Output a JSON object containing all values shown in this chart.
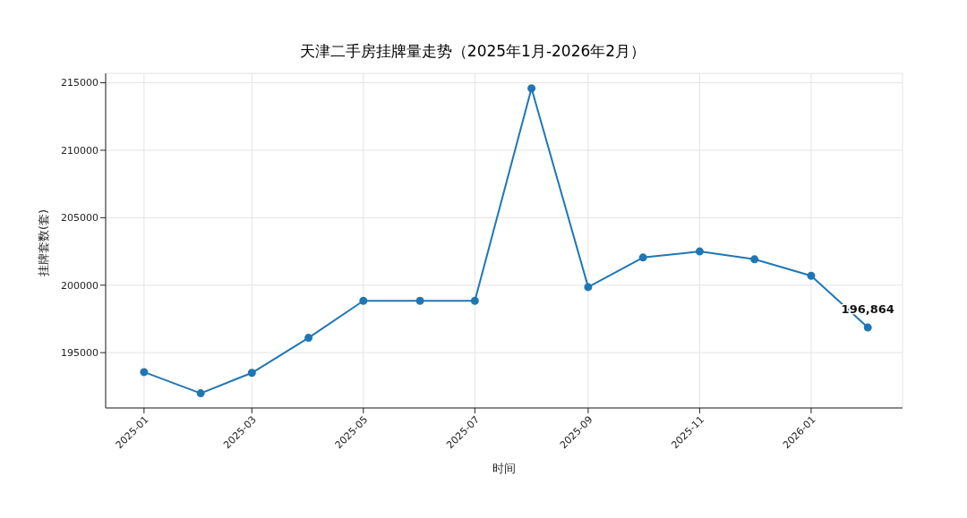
{
  "chart_data": {
    "type": "line",
    "title": "天津二手房挂牌量走势（2025年1月-2026年2月）",
    "xlabel": "时间",
    "ylabel": "挂牌套数(套)",
    "x": [
      "2025-01",
      "2025-02",
      "2025-03",
      "2025-04",
      "2025-05",
      "2025-06",
      "2025-07",
      "2025-08",
      "2025-09",
      "2025-10",
      "2025-11",
      "2025-12",
      "2026-01",
      "2026-02"
    ],
    "series": [
      {
        "color": "#1f77b4",
        "values": [
          193560,
          191990,
          193500,
          196100,
          198840,
          198840,
          198840,
          214590,
          199860,
          202050,
          202500,
          201920,
          200700,
          196864
        ],
        "value_labels": [
          null,
          null,
          null,
          null,
          null,
          null,
          null,
          null,
          null,
          null,
          null,
          null,
          null,
          "196,864"
        ]
      }
    ],
    "xlim": [
      "2024-12-11",
      "2026-02-20"
    ],
    "xticks": [
      "2025-01",
      "2025-03",
      "2025-05",
      "2025-07",
      "2025-09",
      "2025-11",
      "2026-01"
    ],
    "ylim": [
      190900,
      215700
    ],
    "yticks": [
      195000,
      200000,
      205000,
      210000,
      215000
    ],
    "grid": true,
    "marker": "circle",
    "line_style": "solid"
  }
}
